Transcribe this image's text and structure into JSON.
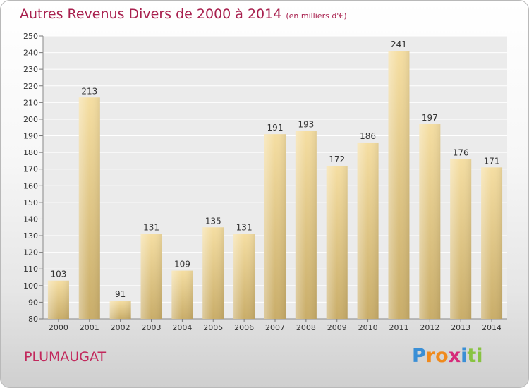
{
  "title": "Autres Revenus Divers de 2000 à 2014",
  "subtitle": "(en milliers d'€)",
  "town": "PLUMAUGAT",
  "brand": {
    "letters": [
      "P",
      "r",
      "o",
      "x",
      "i",
      "t",
      "i"
    ],
    "colors": [
      "#3a8fd6",
      "#f08a1c",
      "#f08a1c",
      "#d62b7a",
      "#3a8fd6",
      "#88c341",
      "#88c341"
    ]
  },
  "chart_data": {
    "type": "bar",
    "title": "Autres Revenus Divers de 2000 à 2014",
    "subtitle": "(en milliers d'€)",
    "categories": [
      "2000",
      "2001",
      "2002",
      "2003",
      "2004",
      "2005",
      "2006",
      "2007",
      "2008",
      "2009",
      "2010",
      "2011",
      "2012",
      "2013",
      "2014"
    ],
    "values": [
      103,
      213,
      91,
      131,
      109,
      135,
      131,
      191,
      193,
      172,
      186,
      241,
      197,
      176,
      171
    ],
    "ylim": [
      80,
      250
    ],
    "ytick_step": 10,
    "grid": true,
    "bar_color": "#e8cf8a"
  }
}
